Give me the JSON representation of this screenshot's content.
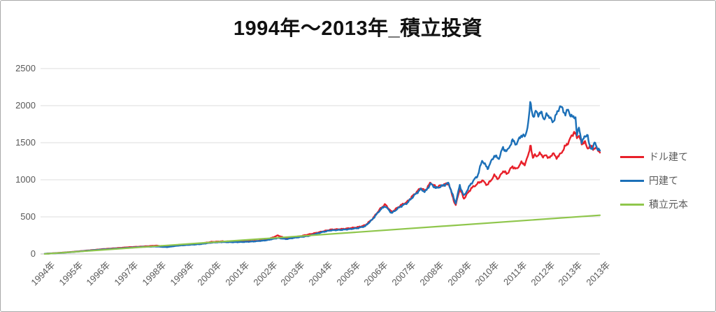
{
  "title": "1994年〜2013年_積立投資",
  "chart_data": {
    "type": "line",
    "title": "1994年〜2013年_積立投資",
    "xlabel": "",
    "ylabel": "",
    "x_range": [
      1994,
      2014
    ],
    "y_range": [
      0,
      2500
    ],
    "y_ticks": [
      0,
      500,
      1000,
      1500,
      2000,
      2500
    ],
    "x_tick_labels": [
      "1994年",
      "1995年",
      "1996年",
      "1997年",
      "1998年",
      "1999年",
      "2000年",
      "2001年",
      "2002年",
      "2003年",
      "2004年",
      "2005年",
      "2006年",
      "2007年",
      "2008年",
      "2009年",
      "2010年",
      "2011年",
      "2012年",
      "2013年",
      "2013年"
    ],
    "grid": true,
    "legend_position": "right",
    "series": [
      {
        "name": "ドル建て",
        "color": "#e8202a",
        "noise_pct": 2.0,
        "points": [
          [
            1994.0,
            2
          ],
          [
            1994.5,
            14
          ],
          [
            1995.0,
            28
          ],
          [
            1995.5,
            45
          ],
          [
            1996.0,
            62
          ],
          [
            1996.5,
            76
          ],
          [
            1997.0,
            90
          ],
          [
            1997.5,
            100
          ],
          [
            1998.0,
            112
          ],
          [
            1998.4,
            100
          ],
          [
            1998.8,
            120
          ],
          [
            1999.2,
            130
          ],
          [
            1999.6,
            140
          ],
          [
            2000.0,
            162
          ],
          [
            2000.4,
            170
          ],
          [
            2000.8,
            165
          ],
          [
            2001.2,
            170
          ],
          [
            2001.6,
            175
          ],
          [
            2002.0,
            190
          ],
          [
            2002.4,
            250
          ],
          [
            2002.7,
            205
          ],
          [
            2003.0,
            225
          ],
          [
            2003.5,
            262
          ],
          [
            2004.0,
            302
          ],
          [
            2004.3,
            328
          ],
          [
            2004.7,
            335
          ],
          [
            2005.0,
            348
          ],
          [
            2005.3,
            362
          ],
          [
            2005.55,
            388
          ],
          [
            2005.8,
            470
          ],
          [
            2006.1,
            615
          ],
          [
            2006.26,
            668
          ],
          [
            2006.5,
            565
          ],
          [
            2006.8,
            650
          ],
          [
            2007.05,
            700
          ],
          [
            2007.3,
            800
          ],
          [
            2007.55,
            890
          ],
          [
            2007.7,
            850
          ],
          [
            2007.9,
            962
          ],
          [
            2008.1,
            898
          ],
          [
            2008.3,
            928
          ],
          [
            2008.55,
            948
          ],
          [
            2008.8,
            648
          ],
          [
            2008.95,
            885
          ],
          [
            2009.1,
            745
          ],
          [
            2009.35,
            880
          ],
          [
            2009.6,
            950
          ],
          [
            2009.76,
            990
          ],
          [
            2009.95,
            930
          ],
          [
            2010.2,
            1060
          ],
          [
            2010.35,
            1010
          ],
          [
            2010.5,
            1120
          ],
          [
            2010.65,
            1080
          ],
          [
            2010.85,
            1180
          ],
          [
            2011.0,
            1140
          ],
          [
            2011.15,
            1230
          ],
          [
            2011.3,
            1210
          ],
          [
            2011.42,
            1330
          ],
          [
            2011.5,
            1490
          ],
          [
            2011.58,
            1270
          ],
          [
            2011.65,
            1360
          ],
          [
            2011.75,
            1300
          ],
          [
            2011.85,
            1380
          ],
          [
            2011.95,
            1290
          ],
          [
            2012.05,
            1350
          ],
          [
            2012.15,
            1280
          ],
          [
            2012.3,
            1360
          ],
          [
            2012.42,
            1300
          ],
          [
            2012.55,
            1330
          ],
          [
            2012.7,
            1420
          ],
          [
            2012.85,
            1500
          ],
          [
            2013.0,
            1600
          ],
          [
            2013.08,
            1655
          ],
          [
            2013.17,
            1560
          ],
          [
            2013.25,
            1610
          ],
          [
            2013.35,
            1460
          ],
          [
            2013.45,
            1540
          ],
          [
            2013.55,
            1400
          ],
          [
            2013.65,
            1480
          ],
          [
            2013.75,
            1400
          ],
          [
            2013.85,
            1450
          ],
          [
            2013.95,
            1370
          ],
          [
            2014.0,
            1390
          ]
        ]
      },
      {
        "name": "円建て",
        "color": "#1c70b8",
        "noise_pct": 2.0,
        "points": [
          [
            1994.0,
            2
          ],
          [
            1994.5,
            12
          ],
          [
            1995.0,
            26
          ],
          [
            1995.5,
            42
          ],
          [
            1996.0,
            58
          ],
          [
            1996.5,
            70
          ],
          [
            1997.0,
            82
          ],
          [
            1997.5,
            95
          ],
          [
            1998.0,
            100
          ],
          [
            1998.4,
            92
          ],
          [
            1998.8,
            112
          ],
          [
            1999.2,
            122
          ],
          [
            1999.6,
            132
          ],
          [
            2000.0,
            152
          ],
          [
            2000.4,
            160
          ],
          [
            2000.8,
            158
          ],
          [
            2001.2,
            162
          ],
          [
            2001.6,
            170
          ],
          [
            2002.0,
            185
          ],
          [
            2002.4,
            215
          ],
          [
            2002.7,
            200
          ],
          [
            2003.0,
            218
          ],
          [
            2003.5,
            242
          ],
          [
            2004.0,
            295
          ],
          [
            2004.3,
            318
          ],
          [
            2004.7,
            325
          ],
          [
            2005.0,
            335
          ],
          [
            2005.3,
            350
          ],
          [
            2005.55,
            375
          ],
          [
            2005.8,
            465
          ],
          [
            2006.1,
            600
          ],
          [
            2006.26,
            645
          ],
          [
            2006.5,
            550
          ],
          [
            2006.8,
            635
          ],
          [
            2007.05,
            685
          ],
          [
            2007.3,
            785
          ],
          [
            2007.55,
            875
          ],
          [
            2007.7,
            835
          ],
          [
            2007.9,
            945
          ],
          [
            2008.1,
            885
          ],
          [
            2008.3,
            915
          ],
          [
            2008.55,
            955
          ],
          [
            2008.8,
            680
          ],
          [
            2008.95,
            925
          ],
          [
            2009.1,
            780
          ],
          [
            2009.35,
            945
          ],
          [
            2009.6,
            1060
          ],
          [
            2009.76,
            1265
          ],
          [
            2009.95,
            1150
          ],
          [
            2010.2,
            1330
          ],
          [
            2010.35,
            1280
          ],
          [
            2010.5,
            1430
          ],
          [
            2010.65,
            1380
          ],
          [
            2010.85,
            1530
          ],
          [
            2011.0,
            1480
          ],
          [
            2011.15,
            1600
          ],
          [
            2011.3,
            1580
          ],
          [
            2011.42,
            1760
          ],
          [
            2011.5,
            2070
          ],
          [
            2011.57,
            1880
          ],
          [
            2011.63,
            1830
          ],
          [
            2011.7,
            1950
          ],
          [
            2011.8,
            1860
          ],
          [
            2011.9,
            1920
          ],
          [
            2012.0,
            1800
          ],
          [
            2012.1,
            1900
          ],
          [
            2012.2,
            1830
          ],
          [
            2012.3,
            1780
          ],
          [
            2012.45,
            1890
          ],
          [
            2012.56,
            2000
          ],
          [
            2012.65,
            1950
          ],
          [
            2012.75,
            1890
          ],
          [
            2012.85,
            1940
          ],
          [
            2012.95,
            1870
          ],
          [
            2013.05,
            1830
          ],
          [
            2013.12,
            1860
          ],
          [
            2013.17,
            1600
          ],
          [
            2013.25,
            1700
          ],
          [
            2013.35,
            1500
          ],
          [
            2013.45,
            1580
          ],
          [
            2013.55,
            1620
          ],
          [
            2013.62,
            1450
          ],
          [
            2013.72,
            1420
          ],
          [
            2013.82,
            1500
          ],
          [
            2013.9,
            1430
          ],
          [
            2014.0,
            1390
          ]
        ]
      },
      {
        "name": "積立元本",
        "color": "#8fc64c",
        "noise_pct": 0,
        "points": [
          [
            1994.0,
            0
          ],
          [
            2014.0,
            522
          ]
        ]
      }
    ]
  },
  "colors": {
    "background": "#ffffff",
    "frame_border": "#a8a8a8",
    "gridline": "#dcdcdc",
    "zero_line": "#bdbdbd",
    "tick_label": "#595959",
    "title": "#111111"
  }
}
